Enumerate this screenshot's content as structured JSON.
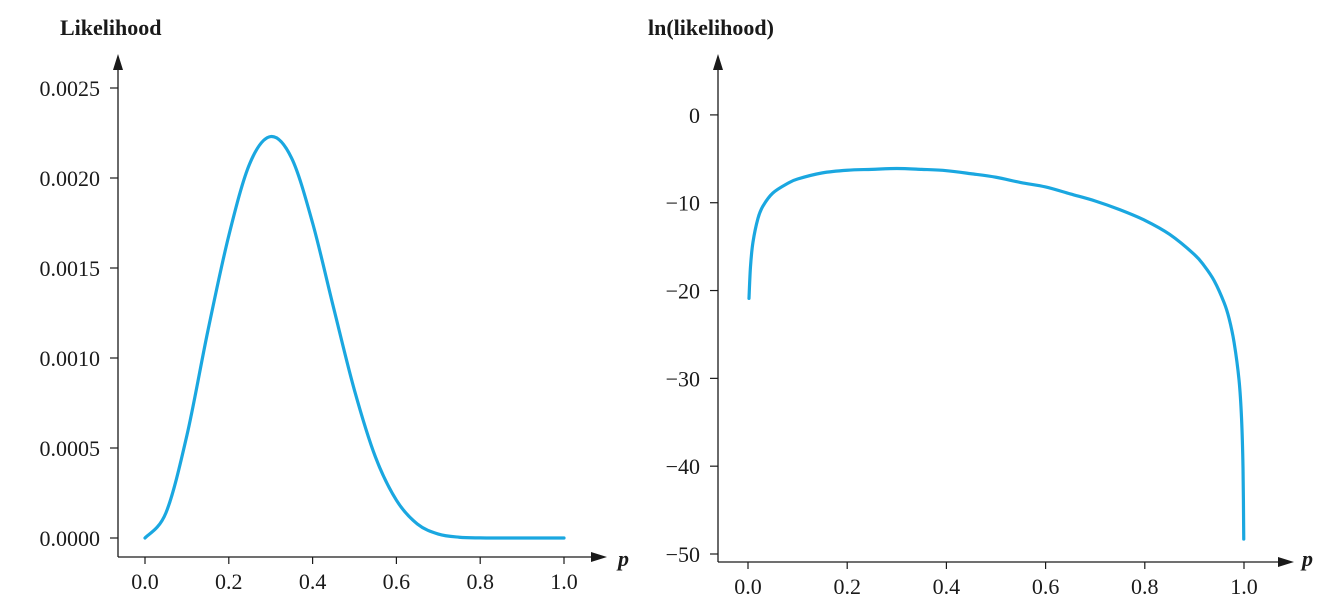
{
  "colors": {
    "curve": "#1aa7e0",
    "axis": "#1a1a1a"
  },
  "chart_data": [
    {
      "type": "line",
      "ylabel": "Likelihood",
      "xlabel": "p",
      "xlim": [
        0,
        1
      ],
      "ylim": [
        0,
        0.0025
      ],
      "x_ticks": [
        "0.0",
        "0.2",
        "0.4",
        "0.6",
        "0.8",
        "1.0"
      ],
      "y_ticks": [
        "0.0000",
        "0.0005",
        "0.0010",
        "0.0015",
        "0.0020",
        "0.0025"
      ],
      "grid": false,
      "legend": "none",
      "series": [
        {
          "x": [
            0.0,
            0.05,
            0.1,
            0.15,
            0.2,
            0.25,
            0.3,
            0.35,
            0.4,
            0.45,
            0.5,
            0.55,
            0.6,
            0.65,
            0.7,
            0.75,
            0.8,
            0.85,
            0.9,
            0.95,
            1.0
          ],
          "values": [
            0.0,
            0.00014,
            0.00057,
            0.00115,
            0.00168,
            0.00208,
            0.00223,
            0.00211,
            0.00175,
            0.00128,
            0.00082,
            0.00045,
            0.00021,
            7.8e-05,
            2.2e-05,
            4.3e-06,
            5e-07,
            0.0,
            0.0,
            0.0,
            0.0
          ]
        }
      ]
    },
    {
      "type": "line",
      "ylabel": "ln(likelihood)",
      "xlabel": "p",
      "xlim": [
        0,
        1
      ],
      "ylim": [
        -50,
        5
      ],
      "x_ticks": [
        "0.0",
        "0.2",
        "0.4",
        "0.6",
        "0.8",
        "1.0"
      ],
      "y_ticks": [
        "−50",
        "−40",
        "−30",
        "−20",
        "−10",
        "0"
      ],
      "grid": false,
      "legend": "none",
      "series": [
        {
          "x": [
            0.002,
            0.005,
            0.01,
            0.02,
            0.03,
            0.05,
            0.08,
            0.1,
            0.15,
            0.2,
            0.25,
            0.3,
            0.35,
            0.4,
            0.45,
            0.5,
            0.55,
            0.6,
            0.65,
            0.7,
            0.75,
            0.8,
            0.85,
            0.9,
            0.92,
            0.94,
            0.96,
            0.97,
            0.98,
            0.99,
            0.995,
            0.998,
            0.9995
          ],
          "values": [
            -20.9,
            -17.3,
            -14.5,
            -11.8,
            -10.4,
            -8.9,
            -7.8,
            -7.3,
            -6.6,
            -6.3,
            -6.2,
            -6.1,
            -6.2,
            -6.35,
            -6.7,
            -7.1,
            -7.7,
            -8.2,
            -9.0,
            -9.8,
            -10.8,
            -12.0,
            -13.6,
            -15.9,
            -17.2,
            -18.9,
            -21.4,
            -23.2,
            -25.9,
            -30.2,
            -34.5,
            -40.2,
            -48.3
          ]
        }
      ]
    }
  ]
}
